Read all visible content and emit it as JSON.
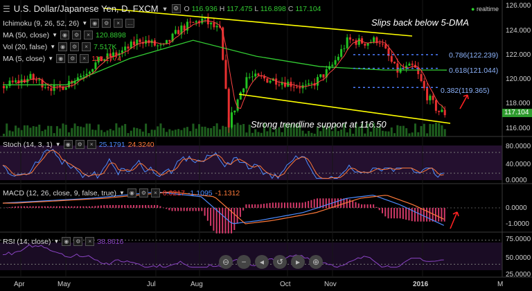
{
  "header": {
    "symbol": "U.S. Dollar/Japanese Yen, D, FXCM",
    "ohlc": [
      {
        "k": "O",
        "v": "116.936"
      },
      {
        "k": "H",
        "v": "117.475"
      },
      {
        "k": "L",
        "v": "116.898"
      },
      {
        "k": "C",
        "v": "117.104"
      }
    ],
    "realtime": "realtime"
  },
  "indicators": [
    {
      "label": "Ichimoku (9, 26, 52, 26)",
      "value": "",
      "color": "#ffffff"
    },
    {
      "label": "MA (50, close)",
      "value": "120.8898",
      "color": "#33cc33"
    },
    {
      "label": "Vol (20, false)",
      "value": "7.517K",
      "color": "#33cc33"
    },
    {
      "label": "MA (5, close)",
      "value": "118.1774",
      "color": "#ff3333"
    }
  ],
  "price_tag": "117.104",
  "annotations": {
    "top": "Slips back below 5-DMA",
    "bottom": "Strong trendline support at 116.50"
  },
  "fib": [
    {
      "label": "0.786(122.239)",
      "level": 122.239
    },
    {
      "label": "0.618(121.044)",
      "level": 121.044
    },
    {
      "label": "0.382(119.365)",
      "level": 119.365
    }
  ],
  "price_axis": [
    "126.000",
    "124.000",
    "122.000",
    "120.000",
    "118.000",
    "116.000"
  ],
  "stoch": {
    "label": "Stoch (14, 3, 1)",
    "v1": "25.1791",
    "v2": "24.3240",
    "axis": [
      "80.0000",
      "40.0000",
      "0.0000"
    ]
  },
  "macd": {
    "label": "MACD (12, 26, close, 9, false, true)",
    "v1": "0.0217",
    "v2": "-1.1095",
    "v3": "-1.1312",
    "axis": [
      "0.0000",
      "-1.0000"
    ]
  },
  "rsi": {
    "label": "RSI (14, close)",
    "v1": "38.8616",
    "axis": [
      "75.0000",
      "50.0000",
      "25.0000"
    ]
  },
  "time_axis": [
    "Apr",
    "May",
    "Jul",
    "Aug",
    "Oct",
    "Nov",
    "2016",
    "M"
  ],
  "colors": {
    "candle_up": "#22c322",
    "candle_down": "#e83030",
    "fib": "#4d7dff",
    "trend": "#ffff00",
    "ma50": "#33cc33",
    "stoch_k": "#4d8cff",
    "stoch_d": "#ff7a3a",
    "rsi": "#8a44c4"
  },
  "chart_data": {
    "type": "line",
    "title": "U.S. Dollar/Japanese Yen, D, FXCM",
    "ylim": [
      115.5,
      126.3
    ],
    "x": [
      "Apr",
      "May",
      "Jul",
      "Aug",
      "Oct",
      "Nov",
      "2016",
      "M"
    ],
    "series": [
      {
        "name": "MA (50, close)",
        "values": [
          119.6,
          119.6,
          121.9,
          123.5,
          122.1,
          121.2,
          120.9,
          120.8898
        ]
      }
    ]
  }
}
